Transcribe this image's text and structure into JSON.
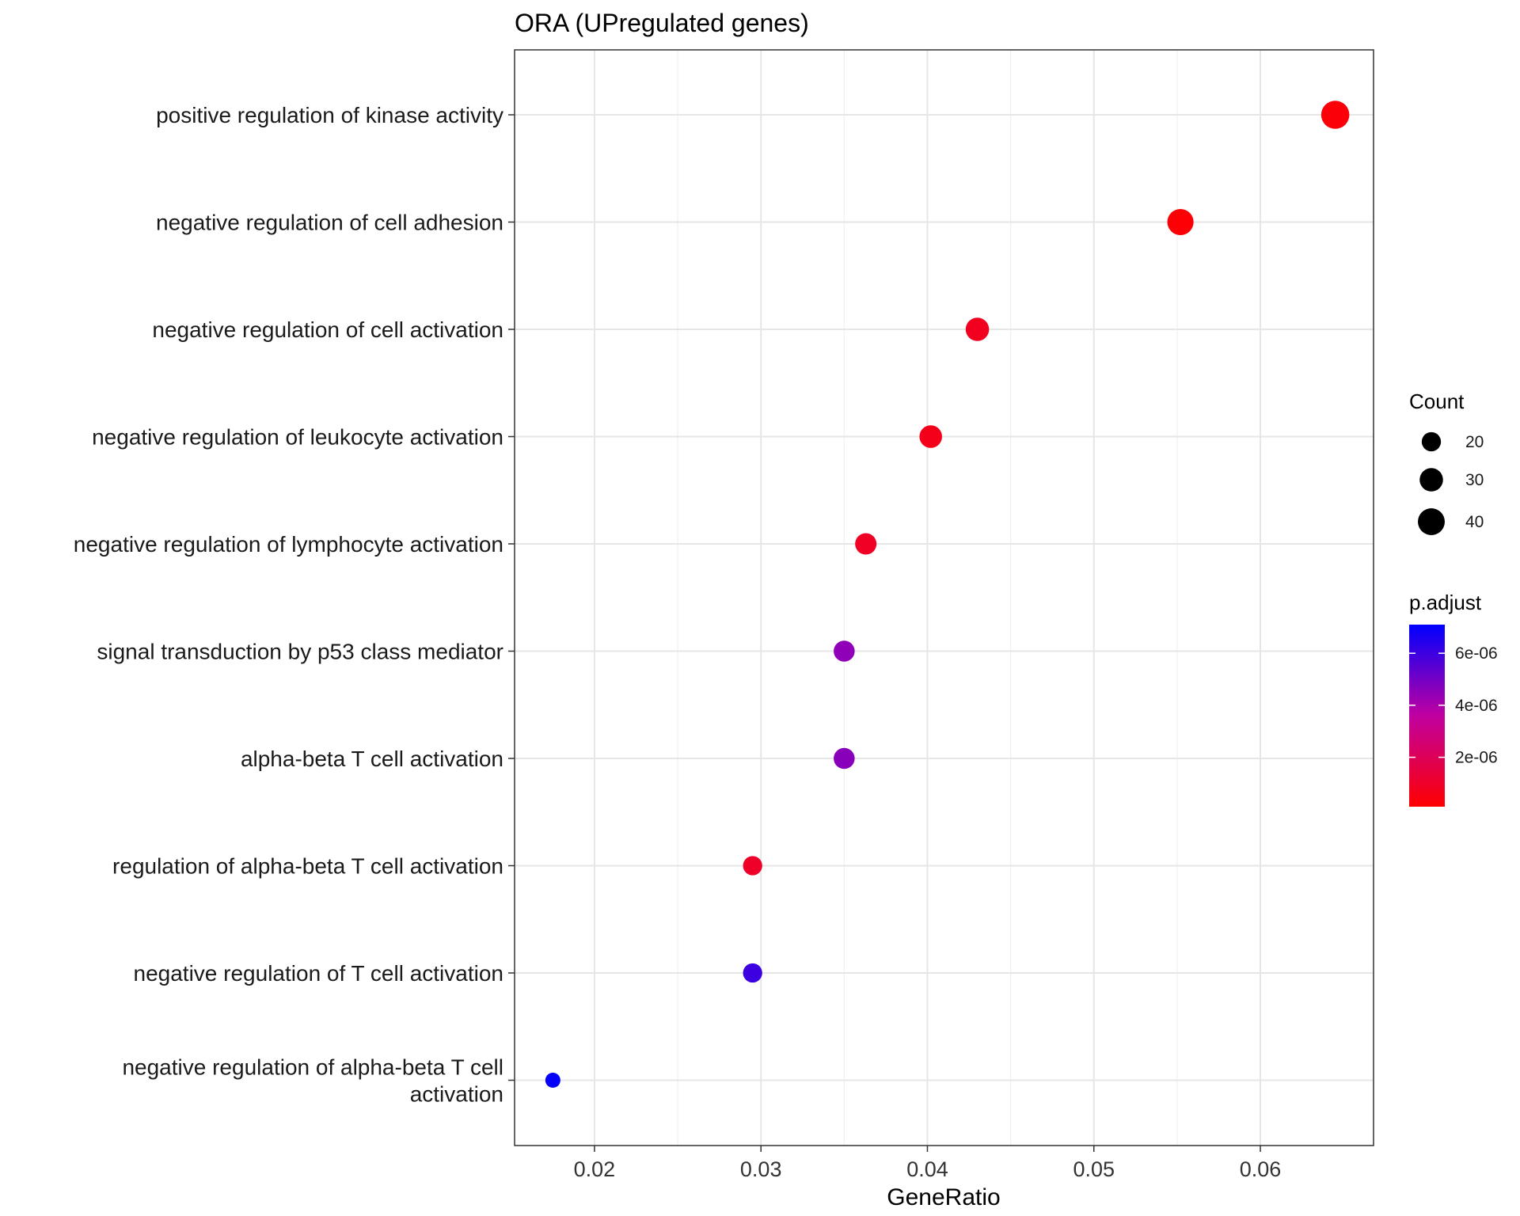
{
  "chart_data": {
    "type": "scatter",
    "title": "ORA (UPregulated genes)",
    "xlabel": "GeneRatio",
    "ylabel": "",
    "xlim": [
      0.0152,
      0.0668
    ],
    "xticks": [
      "0.02",
      "0.03",
      "0.04",
      "0.05",
      "0.06"
    ],
    "xtick_values": [
      0.02,
      0.03,
      0.04,
      0.05,
      0.06
    ],
    "grid": true,
    "categories": [
      "positive regulation of kinase activity",
      "negative regulation of cell adhesion",
      "negative regulation of cell activation",
      "negative regulation of leukocyte activation",
      "negative regulation of lymphocyte activation",
      "signal transduction by p53 class mediator",
      "alpha-beta T cell activation",
      "regulation of alpha-beta T cell activation",
      "negative regulation of T cell activation",
      "negative regulation of alpha-beta T cell activation"
    ],
    "category_lines": [
      [
        "positive regulation of kinase activity"
      ],
      [
        "negative regulation of cell adhesion"
      ],
      [
        "negative regulation of cell activation"
      ],
      [
        "negative regulation of leukocyte activation"
      ],
      [
        "negative regulation of lymphocyte activation"
      ],
      [
        "signal transduction by p53 class mediator"
      ],
      [
        "alpha-beta T cell activation"
      ],
      [
        "regulation of alpha-beta T cell activation"
      ],
      [
        "negative regulation of T cell activation"
      ],
      [
        "negative regulation of alpha-beta T cell",
        "activation"
      ]
    ],
    "gene_ratio": [
      0.0645,
      0.0552,
      0.043,
      0.0402,
      0.0363,
      0.035,
      0.035,
      0.0295,
      0.0295,
      0.0175
    ],
    "count": [
      44,
      38,
      30,
      28,
      25,
      24,
      24,
      20,
      20,
      12
    ],
    "p_adjust": [
      3e-07,
      2e-07,
      8e-07,
      7e-07,
      9e-07,
      4.5e-06,
      4.6e-06,
      1e-06,
      6e-06,
      7e-06
    ],
    "legend_count": {
      "title": "Count",
      "values": [
        20,
        30,
        40
      ],
      "labels": [
        "20",
        "30",
        "40"
      ]
    },
    "legend_color": {
      "title": "p.adjust",
      "range": [
        1e-07,
        7.1e-06
      ],
      "ticks": [
        2e-06,
        4e-06,
        6e-06
      ],
      "labels": [
        "2e-06",
        "4e-06",
        "6e-06"
      ],
      "low_color": "#ff0000",
      "high_color": "#0000ff"
    },
    "legend_position": "right"
  }
}
